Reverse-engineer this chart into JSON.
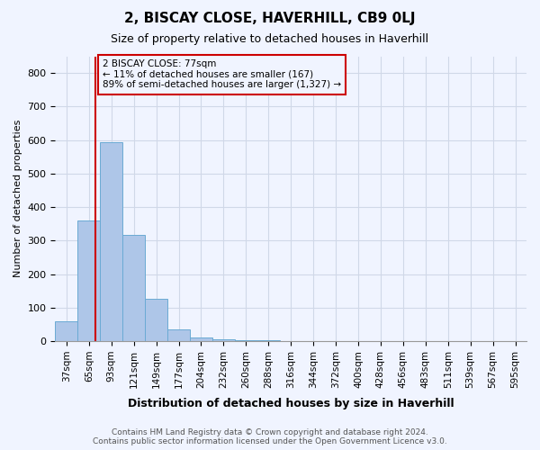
{
  "title": "2, BISCAY CLOSE, HAVERHILL, CB9 0LJ",
  "subtitle": "Size of property relative to detached houses in Haverhill",
  "xlabel": "Distribution of detached houses by size in Haverhill",
  "ylabel": "Number of detached properties",
  "annotation_line1": "2 BISCAY CLOSE: 77sqm",
  "annotation_line2": "← 11% of detached houses are smaller (167)",
  "annotation_line3": "89% of semi-detached houses are larger (1,327) →",
  "footer_line1": "Contains HM Land Registry data © Crown copyright and database right 2024.",
  "footer_line2": "Contains public sector information licensed under the Open Government Licence v3.0.",
  "bar_color": "#aec6e8",
  "bar_edge_color": "#6aaad4",
  "grid_color": "#d0d8e8",
  "vline_color": "#cc0000",
  "annotation_box_color": "#cc0000",
  "background_color": "#f0f4ff",
  "ylim": [
    0,
    850
  ],
  "yticks": [
    0,
    100,
    200,
    300,
    400,
    500,
    600,
    700,
    800
  ],
  "bin_labels": [
    "37sqm",
    "65sqm",
    "93sqm",
    "121sqm",
    "149sqm",
    "177sqm",
    "204sqm",
    "232sqm",
    "260sqm",
    "288sqm",
    "316sqm",
    "344sqm",
    "372sqm",
    "400sqm",
    "428sqm",
    "456sqm",
    "483sqm",
    "511sqm",
    "539sqm",
    "567sqm",
    "595sqm"
  ],
  "bar_values": [
    60,
    360,
    593,
    317,
    127,
    35,
    10,
    5,
    3,
    2,
    0,
    0,
    0,
    0,
    0,
    0,
    0,
    0,
    0,
    0,
    0
  ],
  "vline_position": 1.3,
  "property_size_sqm": 77
}
